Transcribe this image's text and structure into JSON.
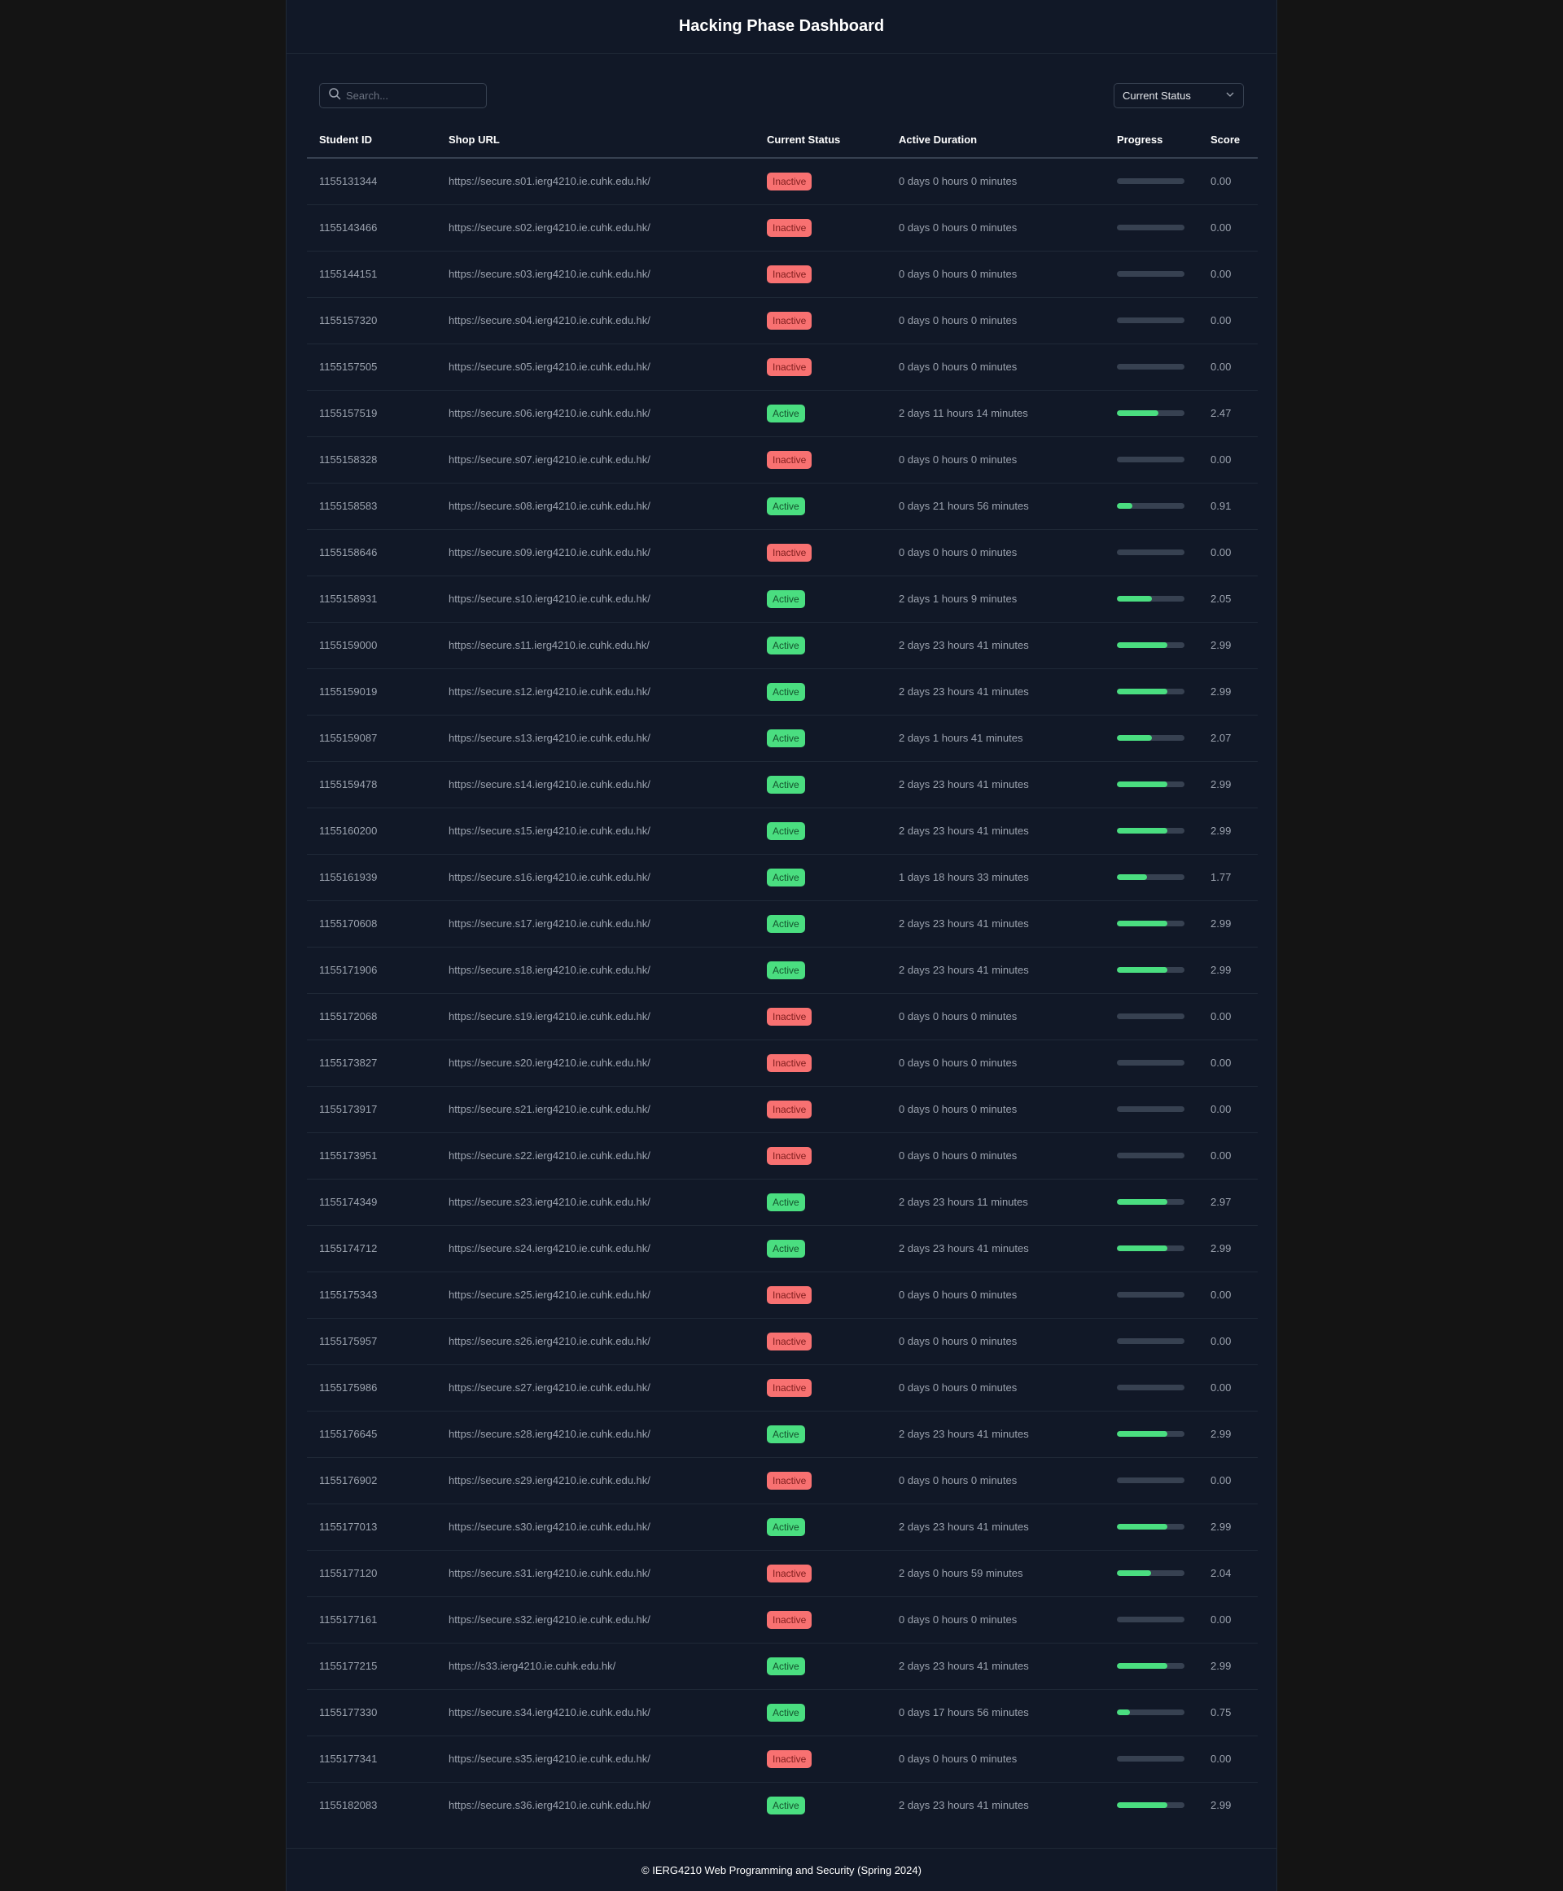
{
  "header": {
    "title": "Hacking Phase Dashboard"
  },
  "toolbar": {
    "search_placeholder": "Search...",
    "search_value": "",
    "status_filter": "Current Status"
  },
  "table": {
    "columns": [
      "Student ID",
      "Shop URL",
      "Current Status",
      "Active Duration",
      "Progress",
      "Score"
    ],
    "max_score": 4,
    "rows": [
      {
        "id": "1155131344",
        "url": "https://secure.s01.ierg4210.ie.cuhk.edu.hk/",
        "status": "Inactive",
        "duration": "0 days 0 hours 0 minutes",
        "score": "0.00"
      },
      {
        "id": "1155143466",
        "url": "https://secure.s02.ierg4210.ie.cuhk.edu.hk/",
        "status": "Inactive",
        "duration": "0 days 0 hours 0 minutes",
        "score": "0.00"
      },
      {
        "id": "1155144151",
        "url": "https://secure.s03.ierg4210.ie.cuhk.edu.hk/",
        "status": "Inactive",
        "duration": "0 days 0 hours 0 minutes",
        "score": "0.00"
      },
      {
        "id": "1155157320",
        "url": "https://secure.s04.ierg4210.ie.cuhk.edu.hk/",
        "status": "Inactive",
        "duration": "0 days 0 hours 0 minutes",
        "score": "0.00"
      },
      {
        "id": "1155157505",
        "url": "https://secure.s05.ierg4210.ie.cuhk.edu.hk/",
        "status": "Inactive",
        "duration": "0 days 0 hours 0 minutes",
        "score": "0.00"
      },
      {
        "id": "1155157519",
        "url": "https://secure.s06.ierg4210.ie.cuhk.edu.hk/",
        "status": "Active",
        "duration": "2 days 11 hours 14 minutes",
        "score": "2.47"
      },
      {
        "id": "1155158328",
        "url": "https://secure.s07.ierg4210.ie.cuhk.edu.hk/",
        "status": "Inactive",
        "duration": "0 days 0 hours 0 minutes",
        "score": "0.00"
      },
      {
        "id": "1155158583",
        "url": "https://secure.s08.ierg4210.ie.cuhk.edu.hk/",
        "status": "Active",
        "duration": "0 days 21 hours 56 minutes",
        "score": "0.91"
      },
      {
        "id": "1155158646",
        "url": "https://secure.s09.ierg4210.ie.cuhk.edu.hk/",
        "status": "Inactive",
        "duration": "0 days 0 hours 0 minutes",
        "score": "0.00"
      },
      {
        "id": "1155158931",
        "url": "https://secure.s10.ierg4210.ie.cuhk.edu.hk/",
        "status": "Active",
        "duration": "2 days 1 hours 9 minutes",
        "score": "2.05"
      },
      {
        "id": "1155159000",
        "url": "https://secure.s11.ierg4210.ie.cuhk.edu.hk/",
        "status": "Active",
        "duration": "2 days 23 hours 41 minutes",
        "score": "2.99"
      },
      {
        "id": "1155159019",
        "url": "https://secure.s12.ierg4210.ie.cuhk.edu.hk/",
        "status": "Active",
        "duration": "2 days 23 hours 41 minutes",
        "score": "2.99"
      },
      {
        "id": "1155159087",
        "url": "https://secure.s13.ierg4210.ie.cuhk.edu.hk/",
        "status": "Active",
        "duration": "2 days 1 hours 41 minutes",
        "score": "2.07"
      },
      {
        "id": "1155159478",
        "url": "https://secure.s14.ierg4210.ie.cuhk.edu.hk/",
        "status": "Active",
        "duration": "2 days 23 hours 41 minutes",
        "score": "2.99"
      },
      {
        "id": "1155160200",
        "url": "https://secure.s15.ierg4210.ie.cuhk.edu.hk/",
        "status": "Active",
        "duration": "2 days 23 hours 41 minutes",
        "score": "2.99"
      },
      {
        "id": "1155161939",
        "url": "https://secure.s16.ierg4210.ie.cuhk.edu.hk/",
        "status": "Active",
        "duration": "1 days 18 hours 33 minutes",
        "score": "1.77"
      },
      {
        "id": "1155170608",
        "url": "https://secure.s17.ierg4210.ie.cuhk.edu.hk/",
        "status": "Active",
        "duration": "2 days 23 hours 41 minutes",
        "score": "2.99"
      },
      {
        "id": "1155171906",
        "url": "https://secure.s18.ierg4210.ie.cuhk.edu.hk/",
        "status": "Active",
        "duration": "2 days 23 hours 41 minutes",
        "score": "2.99"
      },
      {
        "id": "1155172068",
        "url": "https://secure.s19.ierg4210.ie.cuhk.edu.hk/",
        "status": "Inactive",
        "duration": "0 days 0 hours 0 minutes",
        "score": "0.00"
      },
      {
        "id": "1155173827",
        "url": "https://secure.s20.ierg4210.ie.cuhk.edu.hk/",
        "status": "Inactive",
        "duration": "0 days 0 hours 0 minutes",
        "score": "0.00"
      },
      {
        "id": "1155173917",
        "url": "https://secure.s21.ierg4210.ie.cuhk.edu.hk/",
        "status": "Inactive",
        "duration": "0 days 0 hours 0 minutes",
        "score": "0.00"
      },
      {
        "id": "1155173951",
        "url": "https://secure.s22.ierg4210.ie.cuhk.edu.hk/",
        "status": "Inactive",
        "duration": "0 days 0 hours 0 minutes",
        "score": "0.00"
      },
      {
        "id": "1155174349",
        "url": "https://secure.s23.ierg4210.ie.cuhk.edu.hk/",
        "status": "Active",
        "duration": "2 days 23 hours 11 minutes",
        "score": "2.97"
      },
      {
        "id": "1155174712",
        "url": "https://secure.s24.ierg4210.ie.cuhk.edu.hk/",
        "status": "Active",
        "duration": "2 days 23 hours 41 minutes",
        "score": "2.99"
      },
      {
        "id": "1155175343",
        "url": "https://secure.s25.ierg4210.ie.cuhk.edu.hk/",
        "status": "Inactive",
        "duration": "0 days 0 hours 0 minutes",
        "score": "0.00"
      },
      {
        "id": "1155175957",
        "url": "https://secure.s26.ierg4210.ie.cuhk.edu.hk/",
        "status": "Inactive",
        "duration": "0 days 0 hours 0 minutes",
        "score": "0.00"
      },
      {
        "id": "1155175986",
        "url": "https://secure.s27.ierg4210.ie.cuhk.edu.hk/",
        "status": "Inactive",
        "duration": "0 days 0 hours 0 minutes",
        "score": "0.00"
      },
      {
        "id": "1155176645",
        "url": "https://secure.s28.ierg4210.ie.cuhk.edu.hk/",
        "status": "Active",
        "duration": "2 days 23 hours 41 minutes",
        "score": "2.99"
      },
      {
        "id": "1155176902",
        "url": "https://secure.s29.ierg4210.ie.cuhk.edu.hk/",
        "status": "Inactive",
        "duration": "0 days 0 hours 0 minutes",
        "score": "0.00"
      },
      {
        "id": "1155177013",
        "url": "https://secure.s30.ierg4210.ie.cuhk.edu.hk/",
        "status": "Active",
        "duration": "2 days 23 hours 41 minutes",
        "score": "2.99"
      },
      {
        "id": "1155177120",
        "url": "https://secure.s31.ierg4210.ie.cuhk.edu.hk/",
        "status": "Inactive",
        "duration": "2 days 0 hours 59 minutes",
        "score": "2.04"
      },
      {
        "id": "1155177161",
        "url": "https://secure.s32.ierg4210.ie.cuhk.edu.hk/",
        "status": "Inactive",
        "duration": "0 days 0 hours 0 minutes",
        "score": "0.00"
      },
      {
        "id": "1155177215",
        "url": "https://s33.ierg4210.ie.cuhk.edu.hk/",
        "status": "Active",
        "duration": "2 days 23 hours 41 minutes",
        "score": "2.99"
      },
      {
        "id": "1155177330",
        "url": "https://secure.s34.ierg4210.ie.cuhk.edu.hk/",
        "status": "Active",
        "duration": "0 days 17 hours 56 minutes",
        "score": "0.75"
      },
      {
        "id": "1155177341",
        "url": "https://secure.s35.ierg4210.ie.cuhk.edu.hk/",
        "status": "Inactive",
        "duration": "0 days 0 hours 0 minutes",
        "score": "0.00"
      },
      {
        "id": "1155182083",
        "url": "https://secure.s36.ierg4210.ie.cuhk.edu.hk/",
        "status": "Active",
        "duration": "2 days 23 hours 41 minutes",
        "score": "2.99"
      }
    ]
  },
  "footer": {
    "text": "© IERG4210 Web Programming and Security (Spring 2024)"
  },
  "colors": {
    "active": "#4ade80",
    "inactive": "#f87171",
    "track": "#374151",
    "background": "#111827"
  }
}
